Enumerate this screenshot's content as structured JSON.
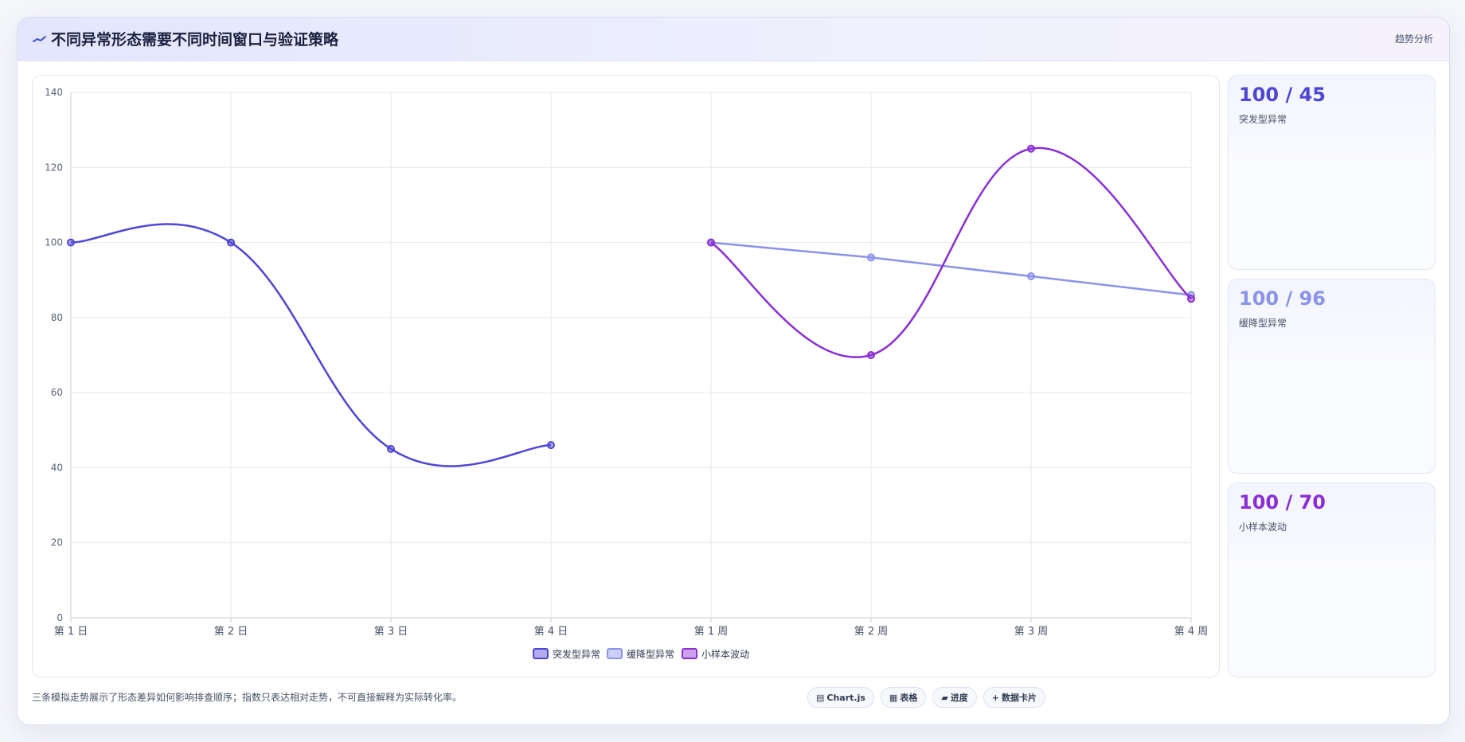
{
  "header": {
    "title": "不同异常形态需要不同时间窗口与验证策略",
    "tag": "趋势分析",
    "icon": "trend-icon"
  },
  "chart_data": {
    "type": "line",
    "x": [
      "第 1 日",
      "第 2 日",
      "第 3 日",
      "第 4 日",
      "第 1 周",
      "第 2 周",
      "第 3 周",
      "第 4 周"
    ],
    "ylim": [
      0,
      140
    ],
    "yticks": [
      0,
      20,
      40,
      60,
      80,
      100,
      120,
      140
    ],
    "grid": true,
    "legend_position": "bottom",
    "series": [
      {
        "name": "突发型异常",
        "color": "#4f46d6",
        "values": [
          100,
          100,
          45,
          46,
          null,
          null,
          null,
          null
        ],
        "smooth": true
      },
      {
        "name": "缓降型异常",
        "color": "#8b93ea",
        "values": [
          null,
          null,
          null,
          null,
          100,
          96,
          91,
          86
        ],
        "smooth": false
      },
      {
        "name": "小样本波动",
        "color": "#8b2ed6",
        "values": [
          null,
          null,
          null,
          null,
          100,
          70,
          125,
          85
        ],
        "smooth": true
      }
    ]
  },
  "cards": [
    {
      "value": "100 / 45",
      "label": "突发型异常",
      "color": "#4f46d6"
    },
    {
      "value": "100 / 96",
      "label": "缓降型异常",
      "color": "#8b93ea"
    },
    {
      "value": "100 / 70",
      "label": "小样本波动",
      "color": "#8b2ed6"
    }
  ],
  "footnote": "三条模拟走势展示了形态差异如何影响排查顺序；指数只表达相对走势，不可直接解释为实际转化率。",
  "chips": [
    {
      "icon": "chart-icon",
      "glyph": "▤",
      "label": "Chart.js"
    },
    {
      "icon": "table-icon",
      "glyph": "▦",
      "label": "表格"
    },
    {
      "icon": "progress-icon",
      "glyph": "▰",
      "label": "进度"
    },
    {
      "icon": "card-icon",
      "glyph": "+",
      "label": "数据卡片"
    }
  ]
}
